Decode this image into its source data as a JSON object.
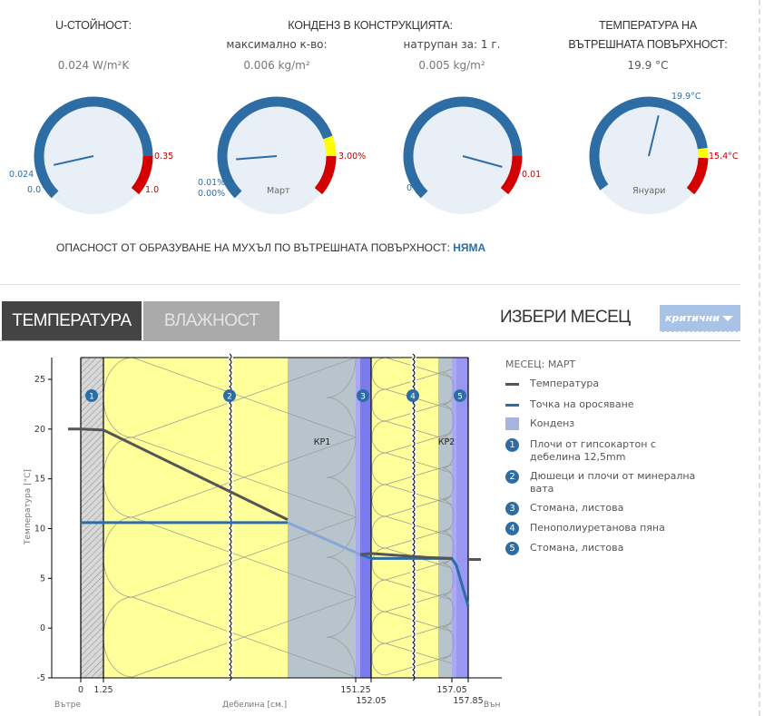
{
  "summary": {
    "u_value": {
      "title": "U-СТОЙНОСТ:",
      "value": "0.024 W/m²K"
    },
    "condensation": {
      "title": "КОНДЕНЗ В КОНСТРУКЦИЯТА:",
      "max_label": "максимално к-во:",
      "max_value": "0.006 kg/m²",
      "accum_label": "натрупан за: 1 г.",
      "accum_value": "0.005 kg/m²"
    },
    "surface_temp": {
      "title_line1": "ТЕМПЕРАТУРА НА",
      "title_line2": "ВЪТРЕШНАТА ПОВЪРХНОСТ:",
      "value": "19.9 °C"
    }
  },
  "gauges": [
    {
      "labels": {
        "current": "0.024",
        "min": "0.0",
        "threshold": "0.35",
        "max": "1.0"
      },
      "fraction": 0.12
    },
    {
      "labels": {
        "current": "0.01%",
        "min": "0.00%",
        "threshold": "3.00%",
        "center": "Март"
      },
      "fraction": 0.15
    },
    {
      "labels": {
        "min": "0",
        "threshold": "0.01"
      },
      "fraction": 0.89
    },
    {
      "labels": {
        "current": "19.9°C",
        "threshold": "15.4°C",
        "center": "Януари"
      },
      "fraction": 0.55
    }
  ],
  "mold_risk": {
    "label": "ОПАСНОСТ ОТ ОБРАЗУВАНЕ НА МУХЪЛ ПО ВЪТРЕШНАТА ПОВЪРХНОСТ:",
    "value": "НЯМА"
  },
  "tabs": [
    {
      "label": "ТЕМПЕРАТУРА",
      "active": true
    },
    {
      "label": "ВЛАЖНОСТ",
      "active": false
    }
  ],
  "month_select": {
    "title": "ИЗБЕРИ МЕСЕЦ",
    "value": "критични"
  },
  "colors": {
    "blue": "#2e6da4",
    "red": "#d40000",
    "yellow": "#ffff00",
    "gauge_bg": "#e9eff7",
    "insulation": "#ffff99",
    "condensation": "#b8c4cc",
    "steel": "#7b7bf0"
  },
  "legend": {
    "month": "МЕСЕЦ: МАРТ",
    "temperature": "Температура",
    "dew_point": "Точка на оросяване",
    "condensation": "Конденз",
    "layers": [
      {
        "n": "1",
        "name": "Плочи от гипсокартон с дебелина 12,5mm"
      },
      {
        "n": "2",
        "name": "Дюшеци и плочи от минерална вата"
      },
      {
        "n": "3",
        "name": "Стомана, листова"
      },
      {
        "n": "4",
        "name": "Пенополиуретанова пяна"
      },
      {
        "n": "5",
        "name": "Стомана, листова"
      }
    ]
  },
  "chart_data": {
    "type": "line",
    "ylabel": "Температура [°C]",
    "xlabel": "Дебелина [см.]",
    "x_left_label": "Вътре",
    "x_right_label": "Вън",
    "ylim": [
      -5,
      27
    ],
    "yticks": [
      "25",
      "20",
      "15",
      "10",
      "5",
      "0",
      "-5"
    ],
    "xticks": [
      "0",
      "1.25",
      "151.25",
      "152.05",
      "157.05",
      "157.85"
    ],
    "zones": [
      "КР1",
      "КР2"
    ],
    "temperature": [
      [
        -0.8,
        20
      ],
      [
        0,
        20
      ],
      [
        1.25,
        19.9
      ],
      [
        110,
        10.9
      ],
      [
        151.25,
        7.4
      ],
      [
        152.05,
        7.5
      ],
      [
        155,
        7.1
      ],
      [
        157.05,
        7.0
      ],
      [
        157.85,
        6.9
      ],
      [
        158.7,
        6.9
      ]
    ],
    "dew_point": [
      [
        0,
        10.6
      ],
      [
        110,
        10.6
      ],
      [
        151.25,
        7.4
      ],
      [
        152.05,
        7.0
      ],
      [
        157.05,
        7.0
      ],
      [
        157.3,
        6.3
      ],
      [
        157.85,
        2.2
      ]
    ]
  }
}
